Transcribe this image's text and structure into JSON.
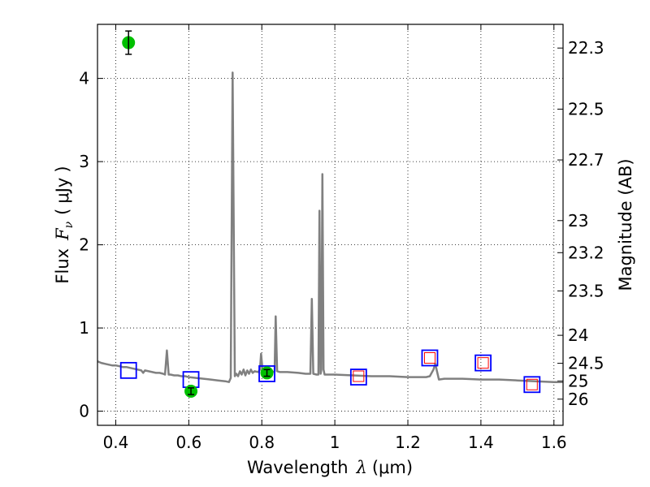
{
  "chart_data": {
    "type": "scatter",
    "xlabel": {
      "prefix": "Wavelength",
      "symbol": "λ",
      "unit_open": "(",
      "unit": "μm",
      "unit_close": ")"
    },
    "ylabel": {
      "prefix": "Flux",
      "symbol": "F",
      "subscript": "ν",
      "unit_open": "(",
      "unit": "μJy",
      "unit_close": ")"
    },
    "y2label": "Magnitude (AB)",
    "xlim": [
      0.35,
      1.625
    ],
    "ylim": [
      -0.17,
      4.65
    ],
    "grid": true,
    "x_ticks": [
      {
        "value": 0.4,
        "label": "0.4"
      },
      {
        "value": 0.6,
        "label": "0.6"
      },
      {
        "value": 0.8,
        "label": "0.8"
      },
      {
        "value": 1.0,
        "label": "1"
      },
      {
        "value": 1.2,
        "label": "1.2"
      },
      {
        "value": 1.4,
        "label": "1.4"
      },
      {
        "value": 1.6,
        "label": "1.6"
      }
    ],
    "y_ticks": [
      {
        "value": 0,
        "label": "0"
      },
      {
        "value": 1,
        "label": "1"
      },
      {
        "value": 2,
        "label": "2"
      },
      {
        "value": 3,
        "label": "3"
      },
      {
        "value": 4,
        "label": "4"
      }
    ],
    "y2_ticks": [
      {
        "value": 22.3,
        "label": "22.3"
      },
      {
        "value": 22.5,
        "label": "22.5"
      },
      {
        "value": 22.7,
        "label": "22.7"
      },
      {
        "value": 23,
        "label": "23"
      },
      {
        "value": 23.2,
        "label": "23.2"
      },
      {
        "value": 23.5,
        "label": "23.5"
      },
      {
        "value": 24,
        "label": "24"
      },
      {
        "value": 24.5,
        "label": "24.5"
      },
      {
        "value": 25,
        "label": "25"
      },
      {
        "value": 26,
        "label": "26"
      }
    ],
    "series": [
      {
        "kind": "spectrum",
        "color": "#808080",
        "points": [
          [
            0.35,
            0.6
          ],
          [
            0.36,
            0.58
          ],
          [
            0.37,
            0.57
          ],
          [
            0.38,
            0.56
          ],
          [
            0.39,
            0.55
          ],
          [
            0.4,
            0.55
          ],
          [
            0.41,
            0.54
          ],
          [
            0.42,
            0.53
          ],
          [
            0.43,
            0.53
          ],
          [
            0.44,
            0.52
          ],
          [
            0.45,
            0.51
          ],
          [
            0.46,
            0.5
          ],
          [
            0.47,
            0.49
          ],
          [
            0.475,
            0.46
          ],
          [
            0.48,
            0.49
          ],
          [
            0.49,
            0.48
          ],
          [
            0.5,
            0.47
          ],
          [
            0.51,
            0.46
          ],
          [
            0.52,
            0.46
          ],
          [
            0.53,
            0.45
          ],
          [
            0.535,
            0.44
          ],
          [
            0.54,
            0.73
          ],
          [
            0.545,
            0.44
          ],
          [
            0.55,
            0.44
          ],
          [
            0.56,
            0.43
          ],
          [
            0.57,
            0.43
          ],
          [
            0.58,
            0.42
          ],
          [
            0.59,
            0.42
          ],
          [
            0.6,
            0.41
          ],
          [
            0.62,
            0.4
          ],
          [
            0.64,
            0.39
          ],
          [
            0.66,
            0.38
          ],
          [
            0.68,
            0.37
          ],
          [
            0.7,
            0.36
          ],
          [
            0.71,
            0.35
          ],
          [
            0.715,
            0.4
          ],
          [
            0.72,
            4.07
          ],
          [
            0.726,
            0.42
          ],
          [
            0.73,
            0.45
          ],
          [
            0.735,
            0.42
          ],
          [
            0.74,
            0.48
          ],
          [
            0.745,
            0.44
          ],
          [
            0.75,
            0.5
          ],
          [
            0.755,
            0.43
          ],
          [
            0.76,
            0.49
          ],
          [
            0.765,
            0.45
          ],
          [
            0.77,
            0.5
          ],
          [
            0.775,
            0.46
          ],
          [
            0.78,
            0.48
          ],
          [
            0.79,
            0.47
          ],
          [
            0.795,
            0.5
          ],
          [
            0.798,
            0.69
          ],
          [
            0.802,
            0.5
          ],
          [
            0.81,
            0.48
          ],
          [
            0.82,
            0.48
          ],
          [
            0.83,
            0.47
          ],
          [
            0.835,
            0.48
          ],
          [
            0.838,
            1.14
          ],
          [
            0.842,
            0.48
          ],
          [
            0.85,
            0.47
          ],
          [
            0.87,
            0.47
          ],
          [
            0.9,
            0.46
          ],
          [
            0.92,
            0.45
          ],
          [
            0.933,
            0.45
          ],
          [
            0.937,
            1.35
          ],
          [
            0.941,
            0.45
          ],
          [
            0.95,
            0.44
          ],
          [
            0.955,
            0.44
          ],
          [
            0.958,
            2.41
          ],
          [
            0.961,
            0.45
          ],
          [
            0.963,
            0.5
          ],
          [
            0.966,
            2.85
          ],
          [
            0.969,
            0.5
          ],
          [
            0.972,
            0.44
          ],
          [
            0.98,
            0.44
          ],
          [
            1.0,
            0.44
          ],
          [
            1.05,
            0.43
          ],
          [
            1.1,
            0.42
          ],
          [
            1.15,
            0.42
          ],
          [
            1.2,
            0.41
          ],
          [
            1.25,
            0.41
          ],
          [
            1.26,
            0.42
          ],
          [
            1.27,
            0.5
          ],
          [
            1.275,
            0.57
          ],
          [
            1.285,
            0.38
          ],
          [
            1.3,
            0.39
          ],
          [
            1.35,
            0.39
          ],
          [
            1.4,
            0.38
          ],
          [
            1.45,
            0.38
          ],
          [
            1.5,
            0.37
          ],
          [
            1.55,
            0.36
          ],
          [
            1.6,
            0.35
          ],
          [
            1.625,
            0.35
          ]
        ]
      },
      {
        "kind": "model-photometry",
        "marker": "square",
        "color": "#0000ff",
        "x": [
          0.435,
          0.606,
          0.814,
          1.065,
          1.26,
          1.406,
          1.54
        ],
        "y": [
          0.49,
          0.38,
          0.45,
          0.41,
          0.64,
          0.58,
          0.32
        ]
      },
      {
        "kind": "observed-band",
        "marker": "square",
        "color": "#ff0000",
        "x": [
          1.065,
          1.26,
          1.406,
          1.54
        ],
        "y": [
          0.42,
          0.64,
          0.58,
          0.32
        ]
      },
      {
        "kind": "observed-photometry",
        "marker": "circle",
        "color": "#00c000",
        "x": [
          0.435,
          0.606,
          0.814
        ],
        "y": [
          4.43,
          0.24,
          0.46
        ],
        "yerr": [
          0.14,
          0.04,
          0.04
        ]
      }
    ]
  }
}
